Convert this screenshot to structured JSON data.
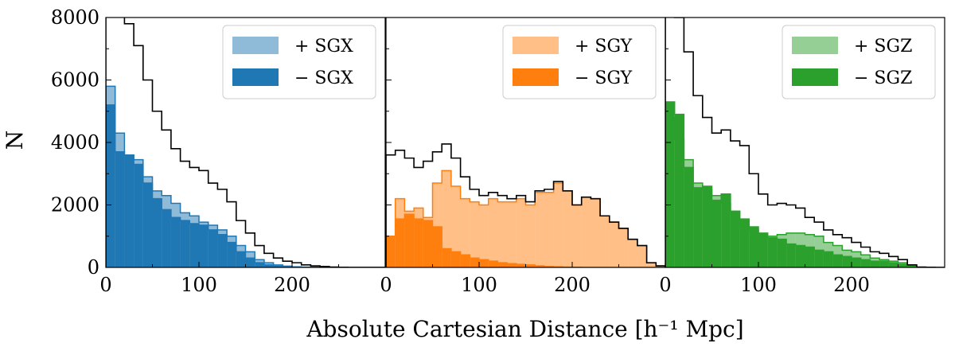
{
  "chart_data": {
    "type": "histogram",
    "ylabel": "N",
    "xlabel": "Absolute Cartesian Distance [h⁻¹ Mpc]",
    "xlim": [
      0,
      300
    ],
    "ylim": [
      0,
      8000
    ],
    "bin_width": 10,
    "bin_starts": [
      0,
      10,
      20,
      30,
      40,
      50,
      60,
      70,
      80,
      90,
      100,
      110,
      120,
      130,
      140,
      150,
      160,
      170,
      180,
      190,
      200,
      210,
      220,
      230,
      240,
      250,
      260,
      270,
      280,
      290
    ],
    "xticks": [
      0,
      100,
      200
    ],
    "yticks": [
      0,
      2000,
      4000,
      6000,
      8000
    ],
    "panels": [
      {
        "name": "sgx",
        "color": "#1f77b4",
        "legend": [
          "+ SGX",
          "− SGX"
        ],
        "plus": [
          5800,
          4300,
          3600,
          3450,
          2900,
          2450,
          2300,
          2050,
          1750,
          1650,
          1450,
          1350,
          1200,
          1000,
          700,
          500,
          250,
          150,
          80,
          40,
          20,
          10,
          5,
          0,
          0,
          0,
          0,
          0,
          0,
          0
        ],
        "minus": [
          5200,
          3700,
          3600,
          3300,
          2700,
          2200,
          1850,
          1600,
          1500,
          1400,
          1350,
          1200,
          1050,
          800,
          500,
          300,
          150,
          80,
          40,
          20,
          10,
          5,
          0,
          0,
          0,
          0,
          0,
          0,
          0,
          0
        ],
        "total": [
          11000,
          8200,
          7800,
          7100,
          6000,
          5000,
          4400,
          3800,
          3400,
          3200,
          3100,
          2700,
          2500,
          2100,
          1500,
          1100,
          700,
          450,
          300,
          200,
          150,
          80,
          50,
          30,
          10,
          5,
          0,
          0,
          0,
          0
        ]
      },
      {
        "name": "sgy",
        "color": "#ff7f0e",
        "legend": [
          "+ SGY",
          "− SGY"
        ],
        "plus": [
          1000,
          2200,
          1800,
          1900,
          1600,
          2700,
          3100,
          2600,
          2200,
          2100,
          2000,
          2200,
          2100,
          2100,
          2200,
          2000,
          2400,
          2400,
          2700,
          2450,
          2000,
          2250,
          2200,
          1650,
          1450,
          1250,
          900,
          700,
          150,
          50
        ],
        "minus": [
          1000,
          1550,
          1700,
          1550,
          1500,
          1300,
          600,
          500,
          400,
          300,
          250,
          200,
          150,
          120,
          100,
          80,
          50,
          30,
          20,
          10,
          5,
          0,
          0,
          0,
          0,
          0,
          0,
          0,
          0,
          0
        ],
        "total": [
          3600,
          3750,
          3500,
          3200,
          3400,
          3700,
          3950,
          3500,
          2900,
          2500,
          2300,
          2400,
          2300,
          2200,
          2300,
          2100,
          2450,
          2500,
          2750,
          2450,
          2000,
          2250,
          2200,
          1650,
          1450,
          1250,
          900,
          700,
          150,
          50
        ]
      },
      {
        "name": "sgz",
        "color": "#2ca02c",
        "legend": [
          "+ SGZ",
          "− SGZ"
        ],
        "plus": [
          4800,
          4100,
          3450,
          2700,
          2500,
          2300,
          2050,
          1800,
          1350,
          1200,
          1050,
          1000,
          1050,
          1100,
          1100,
          1050,
          1000,
          800,
          700,
          550,
          500,
          400,
          300,
          250,
          200,
          150,
          50,
          0,
          0,
          0
        ],
        "minus": [
          5300,
          4900,
          3200,
          2550,
          2600,
          2150,
          2350,
          1800,
          1550,
          1300,
          1100,
          950,
          900,
          750,
          700,
          650,
          550,
          500,
          400,
          350,
          300,
          250,
          200,
          200,
          150,
          100,
          30,
          0,
          0,
          0
        ],
        "total": [
          10000,
          8000,
          6900,
          5500,
          4800,
          4300,
          4400,
          4050,
          3900,
          3000,
          2350,
          2000,
          2050,
          2000,
          1900,
          1600,
          1450,
          1200,
          1050,
          950,
          800,
          650,
          500,
          450,
          350,
          250,
          80,
          10,
          5,
          0
        ]
      }
    ]
  }
}
